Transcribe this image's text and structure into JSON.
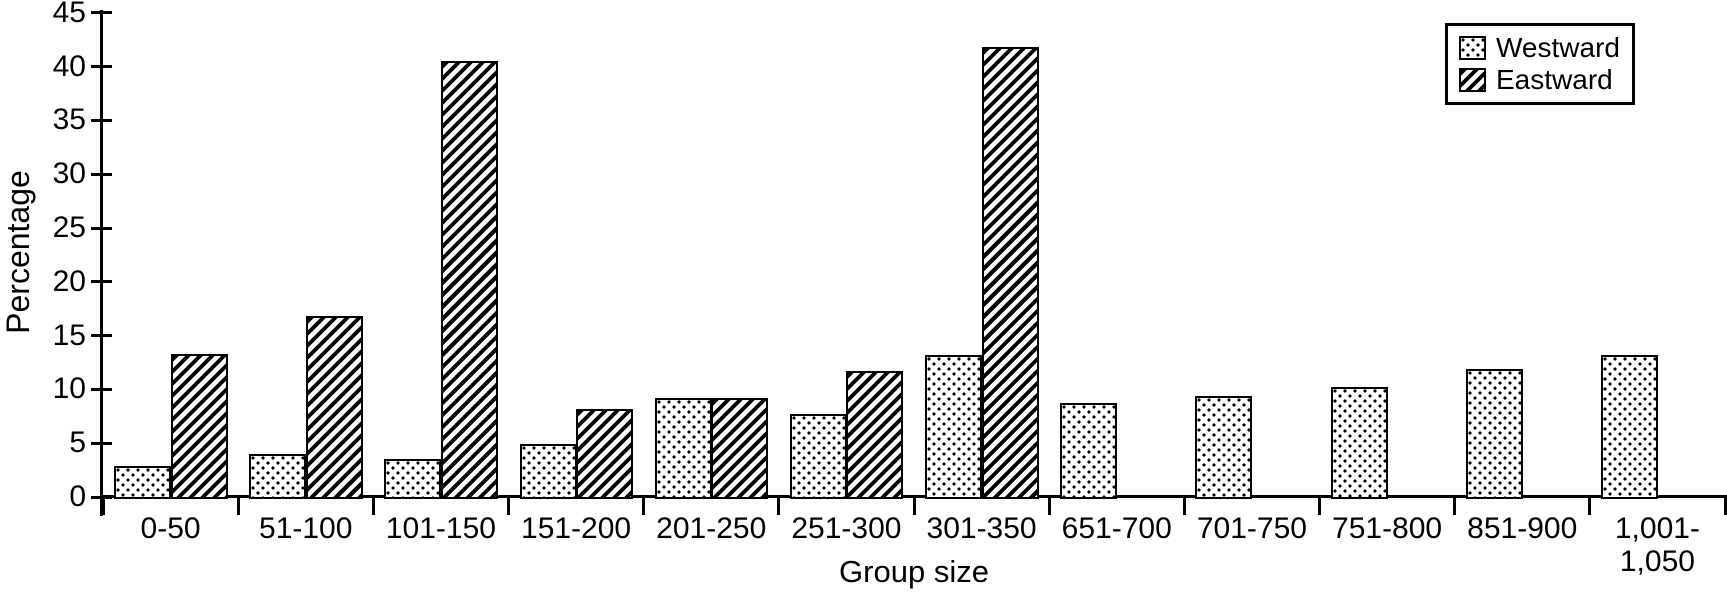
{
  "chart_data": {
    "type": "bar",
    "title": "",
    "xlabel": "Group size",
    "ylabel": "Percentage",
    "ylim": [
      0,
      45
    ],
    "ytick_step": 5,
    "grid": false,
    "legend_position": "top-right",
    "background_color": "#ffffff",
    "foreground_color": "#000000",
    "categories": [
      "0-50",
      "51-100",
      "101-150",
      "151-200",
      "201-250",
      "251-300",
      "301-350",
      "651-700",
      "701-750",
      "751-800",
      "851-900",
      "1,001-\n1,050"
    ],
    "series": [
      {
        "name": "Westward",
        "pattern": "dots",
        "values": [
          2.9,
          4.0,
          3.5,
          4.9,
          9.2,
          7.7,
          13.2,
          8.7,
          9.4,
          10.2,
          11.9,
          13.2
        ]
      },
      {
        "name": "Eastward",
        "pattern": "diagonal-hatch",
        "values": [
          13.3,
          16.8,
          40.5,
          8.2,
          9.2,
          11.7,
          41.8,
          0,
          0,
          0,
          0,
          0
        ]
      }
    ]
  }
}
